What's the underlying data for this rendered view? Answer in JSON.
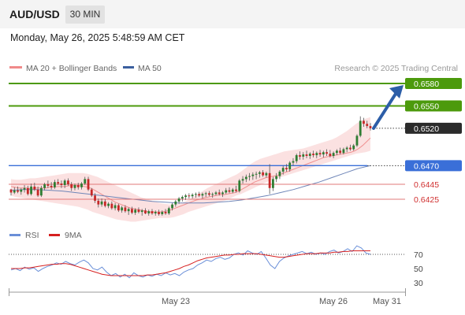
{
  "header": {
    "symbol": "AUD/USD",
    "timeframe": "30 MIN",
    "datetime": "Monday, May 26, 2025 5:48:59 AM CET"
  },
  "legend": {
    "ma20": "MA 20 + Bollinger Bands",
    "ma50": "MA 50",
    "credit": "Research © 2025 Trading Central",
    "rsi": "RSI",
    "ma9": "9MA"
  },
  "colors": {
    "green": "#4c9a0c",
    "blue": "#3a6fd8",
    "red_line": "#e07878",
    "band": "#fbdede",
    "ma20": "#f09090",
    "ma50": "#6f86b8",
    "candle_up": "#2e7d32",
    "candle_down": "#c62828",
    "current_tag": "#2b2b2b",
    "arrow": "#2c5ea8",
    "rsi": "#6a8fd8",
    "ma9": "#d62020"
  },
  "chart_data": {
    "type": "candlestick",
    "price_levels": [
      {
        "value": 0.658,
        "label": "0.6580",
        "kind": "resistance"
      },
      {
        "value": 0.655,
        "label": "0.6550",
        "kind": "resistance"
      },
      {
        "value": 0.652,
        "label": "0.6520",
        "kind": "last_price"
      },
      {
        "value": 0.647,
        "label": "0.6470",
        "kind": "pivot"
      },
      {
        "value": 0.6445,
        "label": "0.6445",
        "kind": "support"
      },
      {
        "value": 0.6425,
        "label": "0.6425",
        "kind": "support"
      }
    ],
    "x_labels": [
      "May 23",
      "May 26",
      "May 31"
    ],
    "rsi_levels": [
      70,
      50,
      30
    ],
    "candles": [
      [
        0.6438,
        0.6439,
        0.643,
        0.6434
      ],
      [
        0.6434,
        0.6441,
        0.6432,
        0.6437
      ],
      [
        0.6437,
        0.6442,
        0.6433,
        0.6435
      ],
      [
        0.6435,
        0.644,
        0.6431,
        0.6438
      ],
      [
        0.6438,
        0.6444,
        0.6434,
        0.644
      ],
      [
        0.644,
        0.6443,
        0.643,
        0.6432
      ],
      [
        0.6432,
        0.6446,
        0.643,
        0.6442
      ],
      [
        0.6442,
        0.6447,
        0.6436,
        0.6438
      ],
      [
        0.6438,
        0.6442,
        0.6428,
        0.643
      ],
      [
        0.643,
        0.6443,
        0.6428,
        0.644
      ],
      [
        0.644,
        0.6447,
        0.6437,
        0.6445
      ],
      [
        0.6445,
        0.645,
        0.644,
        0.6443
      ],
      [
        0.6443,
        0.6448,
        0.6438,
        0.6441
      ],
      [
        0.6441,
        0.6451,
        0.6439,
        0.6448
      ],
      [
        0.6448,
        0.6452,
        0.6444,
        0.6446
      ],
      [
        0.6446,
        0.645,
        0.644,
        0.6444
      ],
      [
        0.6444,
        0.6452,
        0.644,
        0.645
      ],
      [
        0.645,
        0.6453,
        0.6443,
        0.6445
      ],
      [
        0.6445,
        0.6448,
        0.6436,
        0.644
      ],
      [
        0.644,
        0.6446,
        0.6437,
        0.6444
      ],
      [
        0.6444,
        0.6447,
        0.6438,
        0.6441
      ],
      [
        0.6441,
        0.6448,
        0.6438,
        0.6446
      ],
      [
        0.6446,
        0.6455,
        0.6444,
        0.6452
      ],
      [
        0.6452,
        0.6455,
        0.6436,
        0.6438
      ],
      [
        0.6438,
        0.644,
        0.6428,
        0.643
      ],
      [
        0.643,
        0.6433,
        0.642,
        0.6423
      ],
      [
        0.6423,
        0.6426,
        0.6414,
        0.6418
      ],
      [
        0.6418,
        0.6426,
        0.6415,
        0.6422
      ],
      [
        0.6422,
        0.6425,
        0.6414,
        0.6416
      ],
      [
        0.6416,
        0.6421,
        0.6413,
        0.6419
      ],
      [
        0.6419,
        0.6422,
        0.6411,
        0.6413
      ],
      [
        0.6413,
        0.642,
        0.641,
        0.6417
      ],
      [
        0.6417,
        0.6419,
        0.6408,
        0.641
      ],
      [
        0.641,
        0.6416,
        0.6407,
        0.6414
      ],
      [
        0.6414,
        0.6417,
        0.6407,
        0.6409
      ],
      [
        0.6409,
        0.6414,
        0.6404,
        0.6412
      ],
      [
        0.6412,
        0.6415,
        0.6405,
        0.6407
      ],
      [
        0.6407,
        0.6413,
        0.6404,
        0.6411
      ],
      [
        0.6411,
        0.6414,
        0.6406,
        0.6408
      ],
      [
        0.6408,
        0.6412,
        0.6403,
        0.641
      ],
      [
        0.641,
        0.6413,
        0.6405,
        0.6406
      ],
      [
        0.6406,
        0.6411,
        0.6403,
        0.6409
      ],
      [
        0.6409,
        0.6412,
        0.6404,
        0.6406
      ],
      [
        0.6406,
        0.641,
        0.6403,
        0.6408
      ],
      [
        0.6408,
        0.6411,
        0.6403,
        0.6405
      ],
      [
        0.6405,
        0.641,
        0.6403,
        0.6408
      ],
      [
        0.6408,
        0.6412,
        0.6404,
        0.6406
      ],
      [
        0.6406,
        0.6415,
        0.6404,
        0.6413
      ],
      [
        0.6413,
        0.642,
        0.641,
        0.6418
      ],
      [
        0.6418,
        0.6424,
        0.6415,
        0.6422
      ],
      [
        0.6422,
        0.6428,
        0.6419,
        0.6426
      ],
      [
        0.6426,
        0.643,
        0.6422,
        0.6428
      ],
      [
        0.6428,
        0.6432,
        0.6424,
        0.643
      ],
      [
        0.643,
        0.6433,
        0.6426,
        0.6429
      ],
      [
        0.6429,
        0.6433,
        0.6426,
        0.6431
      ],
      [
        0.6431,
        0.6434,
        0.6427,
        0.6432
      ],
      [
        0.6432,
        0.6435,
        0.6428,
        0.643
      ],
      [
        0.643,
        0.6434,
        0.6426,
        0.6432
      ],
      [
        0.6432,
        0.6435,
        0.6428,
        0.6433
      ],
      [
        0.6433,
        0.6436,
        0.6429,
        0.6431
      ],
      [
        0.6431,
        0.6434,
        0.6427,
        0.6432
      ],
      [
        0.6432,
        0.6436,
        0.643,
        0.6434
      ],
      [
        0.6434,
        0.6438,
        0.643,
        0.6432
      ],
      [
        0.6432,
        0.6436,
        0.6428,
        0.6434
      ],
      [
        0.6434,
        0.644,
        0.6432,
        0.6437
      ],
      [
        0.6437,
        0.6441,
        0.6433,
        0.6435
      ],
      [
        0.6435,
        0.644,
        0.6433,
        0.6438
      ],
      [
        0.6438,
        0.6443,
        0.6434,
        0.6436
      ],
      [
        0.6436,
        0.6452,
        0.6434,
        0.645
      ],
      [
        0.645,
        0.6456,
        0.6446,
        0.6452
      ],
      [
        0.6452,
        0.6458,
        0.6448,
        0.6455
      ],
      [
        0.6455,
        0.646,
        0.645,
        0.6456
      ],
      [
        0.6456,
        0.6461,
        0.6451,
        0.6458
      ],
      [
        0.6458,
        0.6462,
        0.6452,
        0.6459
      ],
      [
        0.6459,
        0.6463,
        0.6454,
        0.6461
      ],
      [
        0.6461,
        0.6464,
        0.6455,
        0.6457
      ],
      [
        0.6457,
        0.6462,
        0.6454,
        0.646
      ],
      [
        0.646,
        0.6472,
        0.6432,
        0.644
      ],
      [
        0.644,
        0.6455,
        0.6436,
        0.6452
      ],
      [
        0.6452,
        0.646,
        0.6448,
        0.6456
      ],
      [
        0.6456,
        0.6464,
        0.6452,
        0.6462
      ],
      [
        0.6462,
        0.647,
        0.6458,
        0.6467
      ],
      [
        0.6467,
        0.6472,
        0.6462,
        0.6465
      ],
      [
        0.6465,
        0.6476,
        0.6462,
        0.6474
      ],
      [
        0.6474,
        0.648,
        0.647,
        0.6476
      ],
      [
        0.6476,
        0.6486,
        0.6473,
        0.6484
      ],
      [
        0.6484,
        0.6489,
        0.6478,
        0.6482
      ],
      [
        0.6482,
        0.6488,
        0.6478,
        0.6485
      ],
      [
        0.6485,
        0.649,
        0.648,
        0.6483
      ],
      [
        0.6483,
        0.6488,
        0.6479,
        0.6486
      ],
      [
        0.6486,
        0.649,
        0.6481,
        0.6484
      ],
      [
        0.6484,
        0.6489,
        0.648,
        0.6487
      ],
      [
        0.6487,
        0.6491,
        0.6482,
        0.6485
      ],
      [
        0.6485,
        0.649,
        0.6481,
        0.6488
      ],
      [
        0.6488,
        0.6492,
        0.6483,
        0.6486
      ],
      [
        0.6486,
        0.6491,
        0.6481,
        0.6483
      ],
      [
        0.6483,
        0.6489,
        0.648,
        0.6487
      ],
      [
        0.6487,
        0.6492,
        0.6484,
        0.649
      ],
      [
        0.649,
        0.6494,
        0.6485,
        0.6487
      ],
      [
        0.6487,
        0.6494,
        0.6485,
        0.6492
      ],
      [
        0.6492,
        0.6496,
        0.6488,
        0.6494
      ],
      [
        0.6494,
        0.6498,
        0.649,
        0.6492
      ],
      [
        0.6492,
        0.6499,
        0.649,
        0.6497
      ],
      [
        0.6497,
        0.6512,
        0.6495,
        0.651
      ],
      [
        0.651,
        0.6536,
        0.6508,
        0.653
      ],
      [
        0.653,
        0.6534,
        0.6522,
        0.6526
      ],
      [
        0.6526,
        0.653,
        0.652,
        0.6523
      ],
      [
        0.6523,
        0.6527,
        0.6517,
        0.652
      ]
    ],
    "ma20": [
      0.6442,
      0.6441,
      0.644,
      0.644,
      0.644,
      0.6439,
      0.644,
      0.644,
      0.644,
      0.644,
      0.6441,
      0.6441,
      0.6442,
      0.6442,
      0.6442,
      0.6443,
      0.6443,
      0.6443,
      0.6443,
      0.6442,
      0.6441,
      0.6439,
      0.6436,
      0.6433,
      0.643,
      0.6427,
      0.6424,
      0.6421,
      0.6419,
      0.6417,
      0.6415,
      0.6413,
      0.6412,
      0.6411,
      0.641,
      0.6409,
      0.6408,
      0.6408,
      0.6408,
      0.6408,
      0.6409,
      0.641,
      0.6412,
      0.6414,
      0.6416,
      0.6418,
      0.642,
      0.6422,
      0.6424,
      0.6425,
      0.6427,
      0.6428,
      0.6429,
      0.643,
      0.6431,
      0.6431,
      0.6432,
      0.6433,
      0.6434,
      0.6436,
      0.6439,
      0.6442,
      0.6445,
      0.6448,
      0.645,
      0.6452,
      0.6454,
      0.6455,
      0.6456,
      0.6457,
      0.6459,
      0.6461,
      0.6463,
      0.6465,
      0.6467,
      0.6469,
      0.6471,
      0.6473,
      0.6475,
      0.6477,
      0.6479,
      0.6481,
      0.6482,
      0.6483,
      0.6484,
      0.6485,
      0.6486,
      0.6487,
      0.6488,
      0.649,
      0.6493,
      0.6497,
      0.6502,
      0.6507
    ],
    "bb_upper": [
      0.6452,
      0.6451,
      0.6451,
      0.6452,
      0.6453,
      0.6453,
      0.6454,
      0.6455,
      0.6456,
      0.6457,
      0.6458,
      0.6459,
      0.646,
      0.646,
      0.646,
      0.646,
      0.6459,
      0.6457,
      0.6455,
      0.6452,
      0.6449,
      0.6446,
      0.6443,
      0.644,
      0.6437,
      0.6434,
      0.6431,
      0.6428,
      0.6426,
      0.6424,
      0.6422,
      0.642,
      0.6419,
      0.6418,
      0.6418,
      0.6419,
      0.6421,
      0.6424,
      0.6428,
      0.6432,
      0.6436,
      0.644,
      0.6443,
      0.6446,
      0.6449,
      0.6452,
      0.6455,
      0.6458,
      0.6462,
      0.6467,
      0.6472,
      0.6476,
      0.6479,
      0.6481,
      0.6483,
      0.6485,
      0.6487,
      0.6489,
      0.649,
      0.6491,
      0.6492,
      0.6493,
      0.6495,
      0.6497,
      0.6499,
      0.6501,
      0.6503,
      0.6505,
      0.6508,
      0.6512,
      0.6516,
      0.6521,
      0.6526,
      0.653,
      0.6533,
      0.6535
    ],
    "bb_lower": [
      0.643,
      0.6428,
      0.6427,
      0.6426,
      0.6425,
      0.6424,
      0.6423,
      0.6422,
      0.6421,
      0.642,
      0.6419,
      0.6418,
      0.6417,
      0.6416,
      0.6415,
      0.6413,
      0.6411,
      0.6408,
      0.6406,
      0.6404,
      0.6402,
      0.64,
      0.6398,
      0.6397,
      0.6396,
      0.6395,
      0.6395,
      0.6396,
      0.6397,
      0.6398,
      0.6399,
      0.64,
      0.64,
      0.64,
      0.6401,
      0.6403,
      0.6405,
      0.6408,
      0.641,
      0.6412,
      0.6414,
      0.6416,
      0.6418,
      0.642,
      0.6422,
      0.6424,
      0.6427,
      0.643,
      0.6432,
      0.6435,
      0.6438,
      0.6441,
      0.6444,
      0.6447,
      0.645,
      0.6452,
      0.6454,
      0.6456,
      0.6458,
      0.646,
      0.6462,
      0.6464,
      0.6466,
      0.6468,
      0.647,
      0.6472,
      0.6474,
      0.6476,
      0.6478,
      0.648,
      0.6482,
      0.6484,
      0.6486,
      0.6487,
      0.6488,
      0.649
    ],
    "ma50": [
      0.6437,
      0.6438,
      0.6438,
      0.6437,
      0.6436,
      0.6434,
      0.6432,
      0.643,
      0.6428,
      0.6426,
      0.6424,
      0.6422,
      0.6421,
      0.642,
      0.642,
      0.642,
      0.6421,
      0.6422,
      0.6424,
      0.6427,
      0.643,
      0.6434,
      0.6438,
      0.6443,
      0.6448,
      0.6454,
      0.646,
      0.6466,
      0.647
    ],
    "rsi": [
      48,
      50,
      47,
      52,
      49,
      51,
      46,
      50,
      53,
      55,
      58,
      56,
      60,
      57,
      55,
      59,
      62,
      58,
      50,
      48,
      52,
      45,
      40,
      43,
      38,
      42,
      37,
      44,
      40,
      38,
      41,
      39,
      42,
      40,
      44,
      41,
      43,
      40,
      45,
      48,
      50,
      55,
      58,
      62,
      60,
      64,
      66,
      63,
      65,
      70,
      72,
      69,
      75,
      72,
      70,
      74,
      65,
      55,
      50,
      60,
      65,
      68,
      70,
      72,
      74,
      71,
      73,
      70,
      72,
      70,
      74,
      76,
      72,
      74,
      78,
      74,
      82,
      79,
      72,
      70
    ],
    "ma9": [
      50,
      50,
      50,
      51,
      51,
      52,
      53,
      54,
      55,
      56,
      56,
      57,
      57,
      56,
      54,
      52,
      50,
      48,
      46,
      44,
      42,
      41,
      40,
      40,
      40,
      40,
      40,
      40,
      40,
      40,
      41,
      41,
      42,
      43,
      44,
      46,
      48,
      50,
      53,
      55,
      58,
      61,
      63,
      65,
      66,
      67,
      68,
      69,
      69,
      70,
      70,
      71,
      71,
      71,
      71,
      70,
      69,
      68,
      67,
      66,
      66,
      67,
      68,
      69,
      70,
      71,
      71,
      71,
      72,
      72,
      72,
      73,
      73,
      74,
      74,
      75,
      75,
      75,
      75,
      75
    ]
  }
}
